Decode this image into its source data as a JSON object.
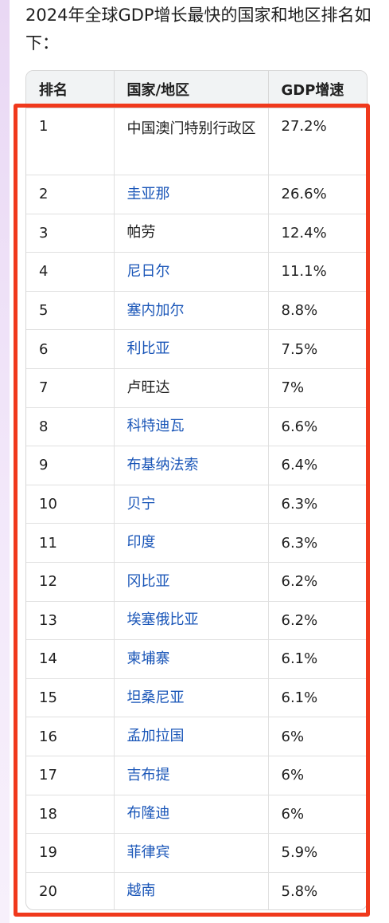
{
  "intro_text": "2024年全球GDP增长最快的国家和地区排名如下：",
  "table": {
    "headers": [
      "排名",
      "国家/地区",
      "GDP增速"
    ],
    "rows": [
      {
        "rank": "1",
        "name": "中国澳门特别行政区",
        "growth": "27.2%",
        "link": false
      },
      {
        "rank": "2",
        "name": "圭亚那",
        "growth": "26.6%",
        "link": true
      },
      {
        "rank": "3",
        "name": "帕劳",
        "growth": "12.4%",
        "link": false
      },
      {
        "rank": "4",
        "name": "尼日尔",
        "growth": "11.1%",
        "link": true
      },
      {
        "rank": "5",
        "name": "塞内加尔",
        "growth": "8.8%",
        "link": true
      },
      {
        "rank": "6",
        "name": "利比亚",
        "growth": "7.5%",
        "link": true
      },
      {
        "rank": "7",
        "name": "卢旺达",
        "growth": "7%",
        "link": false
      },
      {
        "rank": "8",
        "name": "科特迪瓦",
        "growth": "6.6%",
        "link": true
      },
      {
        "rank": "9",
        "name": "布基纳法索",
        "growth": "6.4%",
        "link": true
      },
      {
        "rank": "10",
        "name": "贝宁",
        "growth": "6.3%",
        "link": true
      },
      {
        "rank": "11",
        "name": "印度",
        "growth": "6.3%",
        "link": true
      },
      {
        "rank": "12",
        "name": "冈比亚",
        "growth": "6.2%",
        "link": true
      },
      {
        "rank": "13",
        "name": "埃塞俄比亚",
        "growth": "6.2%",
        "link": true
      },
      {
        "rank": "14",
        "name": "柬埔寨",
        "growth": "6.1%",
        "link": true
      },
      {
        "rank": "15",
        "name": "坦桑尼亚",
        "growth": "6.1%",
        "link": true
      },
      {
        "rank": "16",
        "name": "孟加拉国",
        "growth": "6%",
        "link": true
      },
      {
        "rank": "17",
        "name": "吉布提",
        "growth": "6%",
        "link": true
      },
      {
        "rank": "18",
        "name": "布隆迪",
        "growth": "6%",
        "link": true
      },
      {
        "rank": "19",
        "name": "菲律宾",
        "growth": "5.9%",
        "link": true
      },
      {
        "rank": "20",
        "name": "越南",
        "growth": "5.8%",
        "link": true
      }
    ]
  },
  "colors": {
    "link": "#1a56b8",
    "highlight_border": "#f0391c",
    "header_bg": "#f1f3f4"
  }
}
